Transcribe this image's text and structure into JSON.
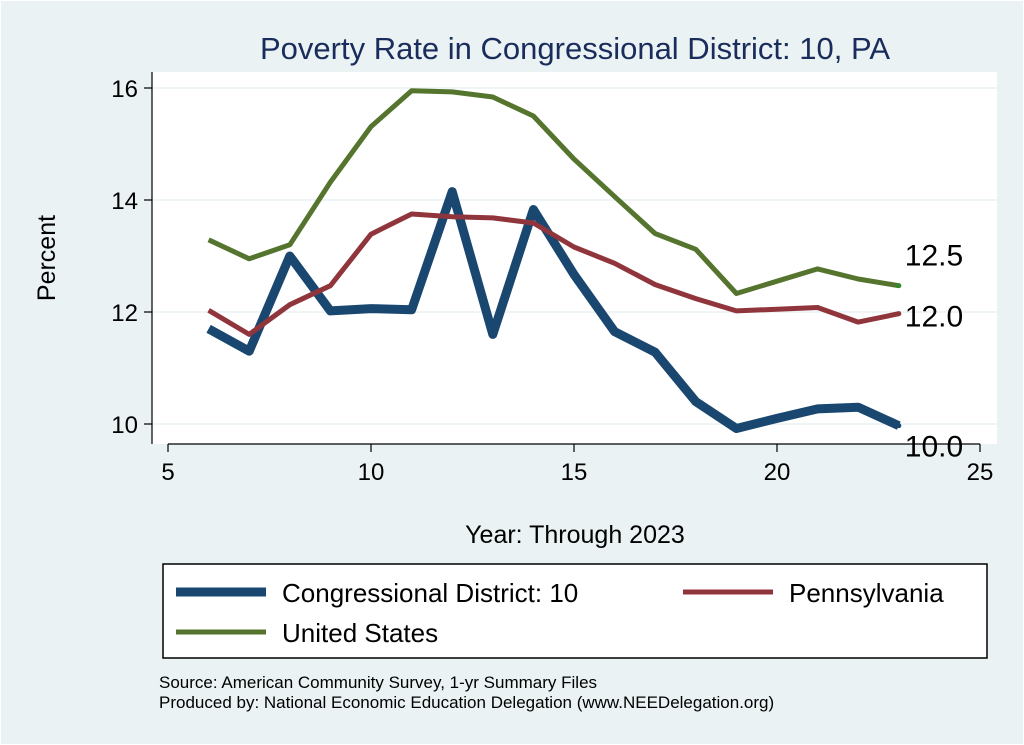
{
  "chart_data": {
    "type": "line",
    "title": "Poverty Rate in Congressional District:  10, PA",
    "xlabel": "Year: Through 2023",
    "ylabel": "Percent",
    "xlim": [
      5,
      25
    ],
    "ylim": [
      9.8,
      16.3
    ],
    "xticks": [
      5,
      10,
      15,
      20,
      25
    ],
    "yticks": [
      10,
      12,
      14,
      16
    ],
    "grid": true,
    "legend_position": "bottom",
    "series": [
      {
        "name": "Congressional District:  10",
        "color": "#1a476f",
        "x": [
          6,
          7,
          8,
          9,
          10,
          11,
          12,
          13,
          14,
          15,
          16,
          17,
          18,
          19,
          20,
          21,
          22,
          23
        ],
        "y": [
          11.7,
          11.3,
          13.0,
          12.02,
          12.06,
          12.04,
          14.15,
          11.6,
          13.83,
          12.67,
          11.65,
          11.28,
          10.4,
          9.92,
          10.1,
          10.27,
          10.3,
          9.97
        ],
        "end_label": "10.0"
      },
      {
        "name": "Pennsylvania",
        "color": "#90353b",
        "x": [
          6,
          7,
          8,
          9,
          10,
          11,
          12,
          13,
          14,
          15,
          16,
          17,
          18,
          19,
          20,
          21,
          22,
          23
        ],
        "y": [
          12.03,
          11.6,
          12.13,
          12.47,
          13.39,
          13.75,
          13.7,
          13.68,
          13.59,
          13.16,
          12.87,
          12.49,
          12.24,
          12.02,
          12.05,
          12.08,
          11.82,
          11.97
        ],
        "end_label": "12.0"
      },
      {
        "name": "United States",
        "color": "#55752f",
        "x": [
          6,
          7,
          8,
          9,
          10,
          11,
          12,
          13,
          14,
          15,
          16,
          17,
          18,
          19,
          20,
          21,
          22,
          23
        ],
        "y": [
          13.29,
          12.95,
          13.2,
          14.32,
          15.31,
          15.95,
          15.93,
          15.84,
          15.5,
          14.73,
          14.06,
          13.4,
          13.12,
          12.33,
          12.55,
          12.77,
          12.59,
          12.47
        ],
        "end_label": "12.5"
      }
    ]
  },
  "source_line_1": "Source: American Community Survey, 1-yr Summary Files",
  "source_line_2": "Produced by: National Economic Education Delegation (www.NEEDelegation.org)"
}
